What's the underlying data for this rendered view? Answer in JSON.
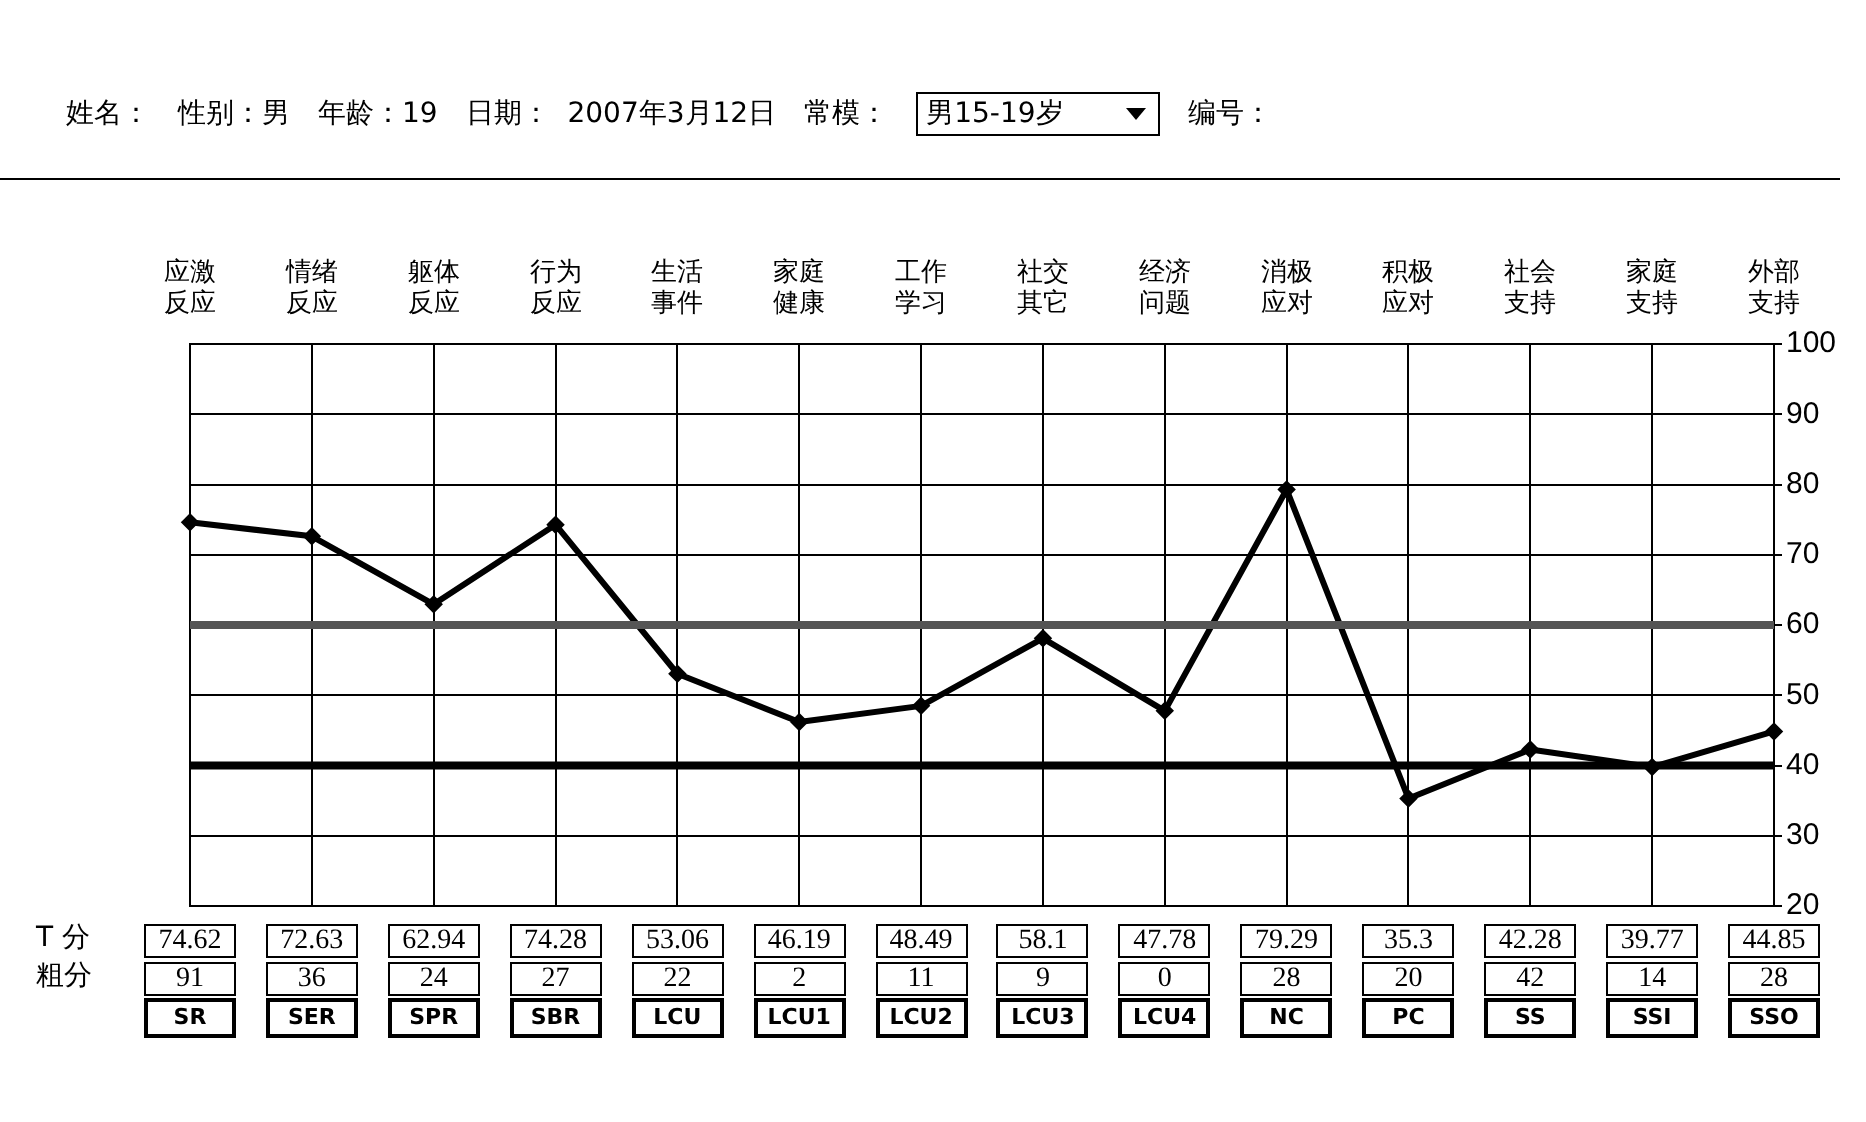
{
  "chart_data": {
    "type": "line",
    "categories": [
      "应激反应",
      "情绪反应",
      "躯体反应",
      "行为反应",
      "生活事件",
      "家庭健康",
      "工作学习",
      "社交其它",
      "经济问题",
      "消极应对",
      "积极应对",
      "社会支持",
      "家庭支持",
      "外部支持"
    ],
    "series": [
      {
        "color": "#000000",
        "values": [
          74.62,
          72.63,
          62.94,
          74.28,
          53.06,
          46.19,
          48.49,
          58.1,
          47.78,
          79.29,
          35.3,
          42.28,
          39.77,
          44.85
        ]
      }
    ],
    "ylim": [
      20,
      100
    ],
    "yticks": [
      20,
      30,
      40,
      50,
      60,
      70,
      80,
      90,
      100
    ],
    "grid": true,
    "legend": false,
    "marker": "diamond",
    "line_style": "solid",
    "data_labels": true,
    "ref_lines": [
      {
        "axis": "y",
        "value": 60,
        "color": "#555555"
      },
      {
        "axis": "y",
        "value": 40,
        "color": "#000000"
      }
    ],
    "annotations": [
      "姓名：",
      "性别：男",
      "年龄：19",
      "日期：  2007年3月12日",
      "常模：",
      "男15-19岁",
      "编号：",
      "T 分",
      "粗分",
      "91",
      "36",
      "24",
      "27",
      "22",
      "2",
      "11",
      "9",
      "0",
      "28",
      "20",
      "42",
      "14",
      "28",
      "SR",
      "SER",
      "SPR",
      "SBR",
      "LCU",
      "LCU1",
      "LCU2",
      "LCU3",
      "LCU4",
      "NC",
      "PC",
      "SS",
      "SSI",
      "SSO"
    ]
  }
}
